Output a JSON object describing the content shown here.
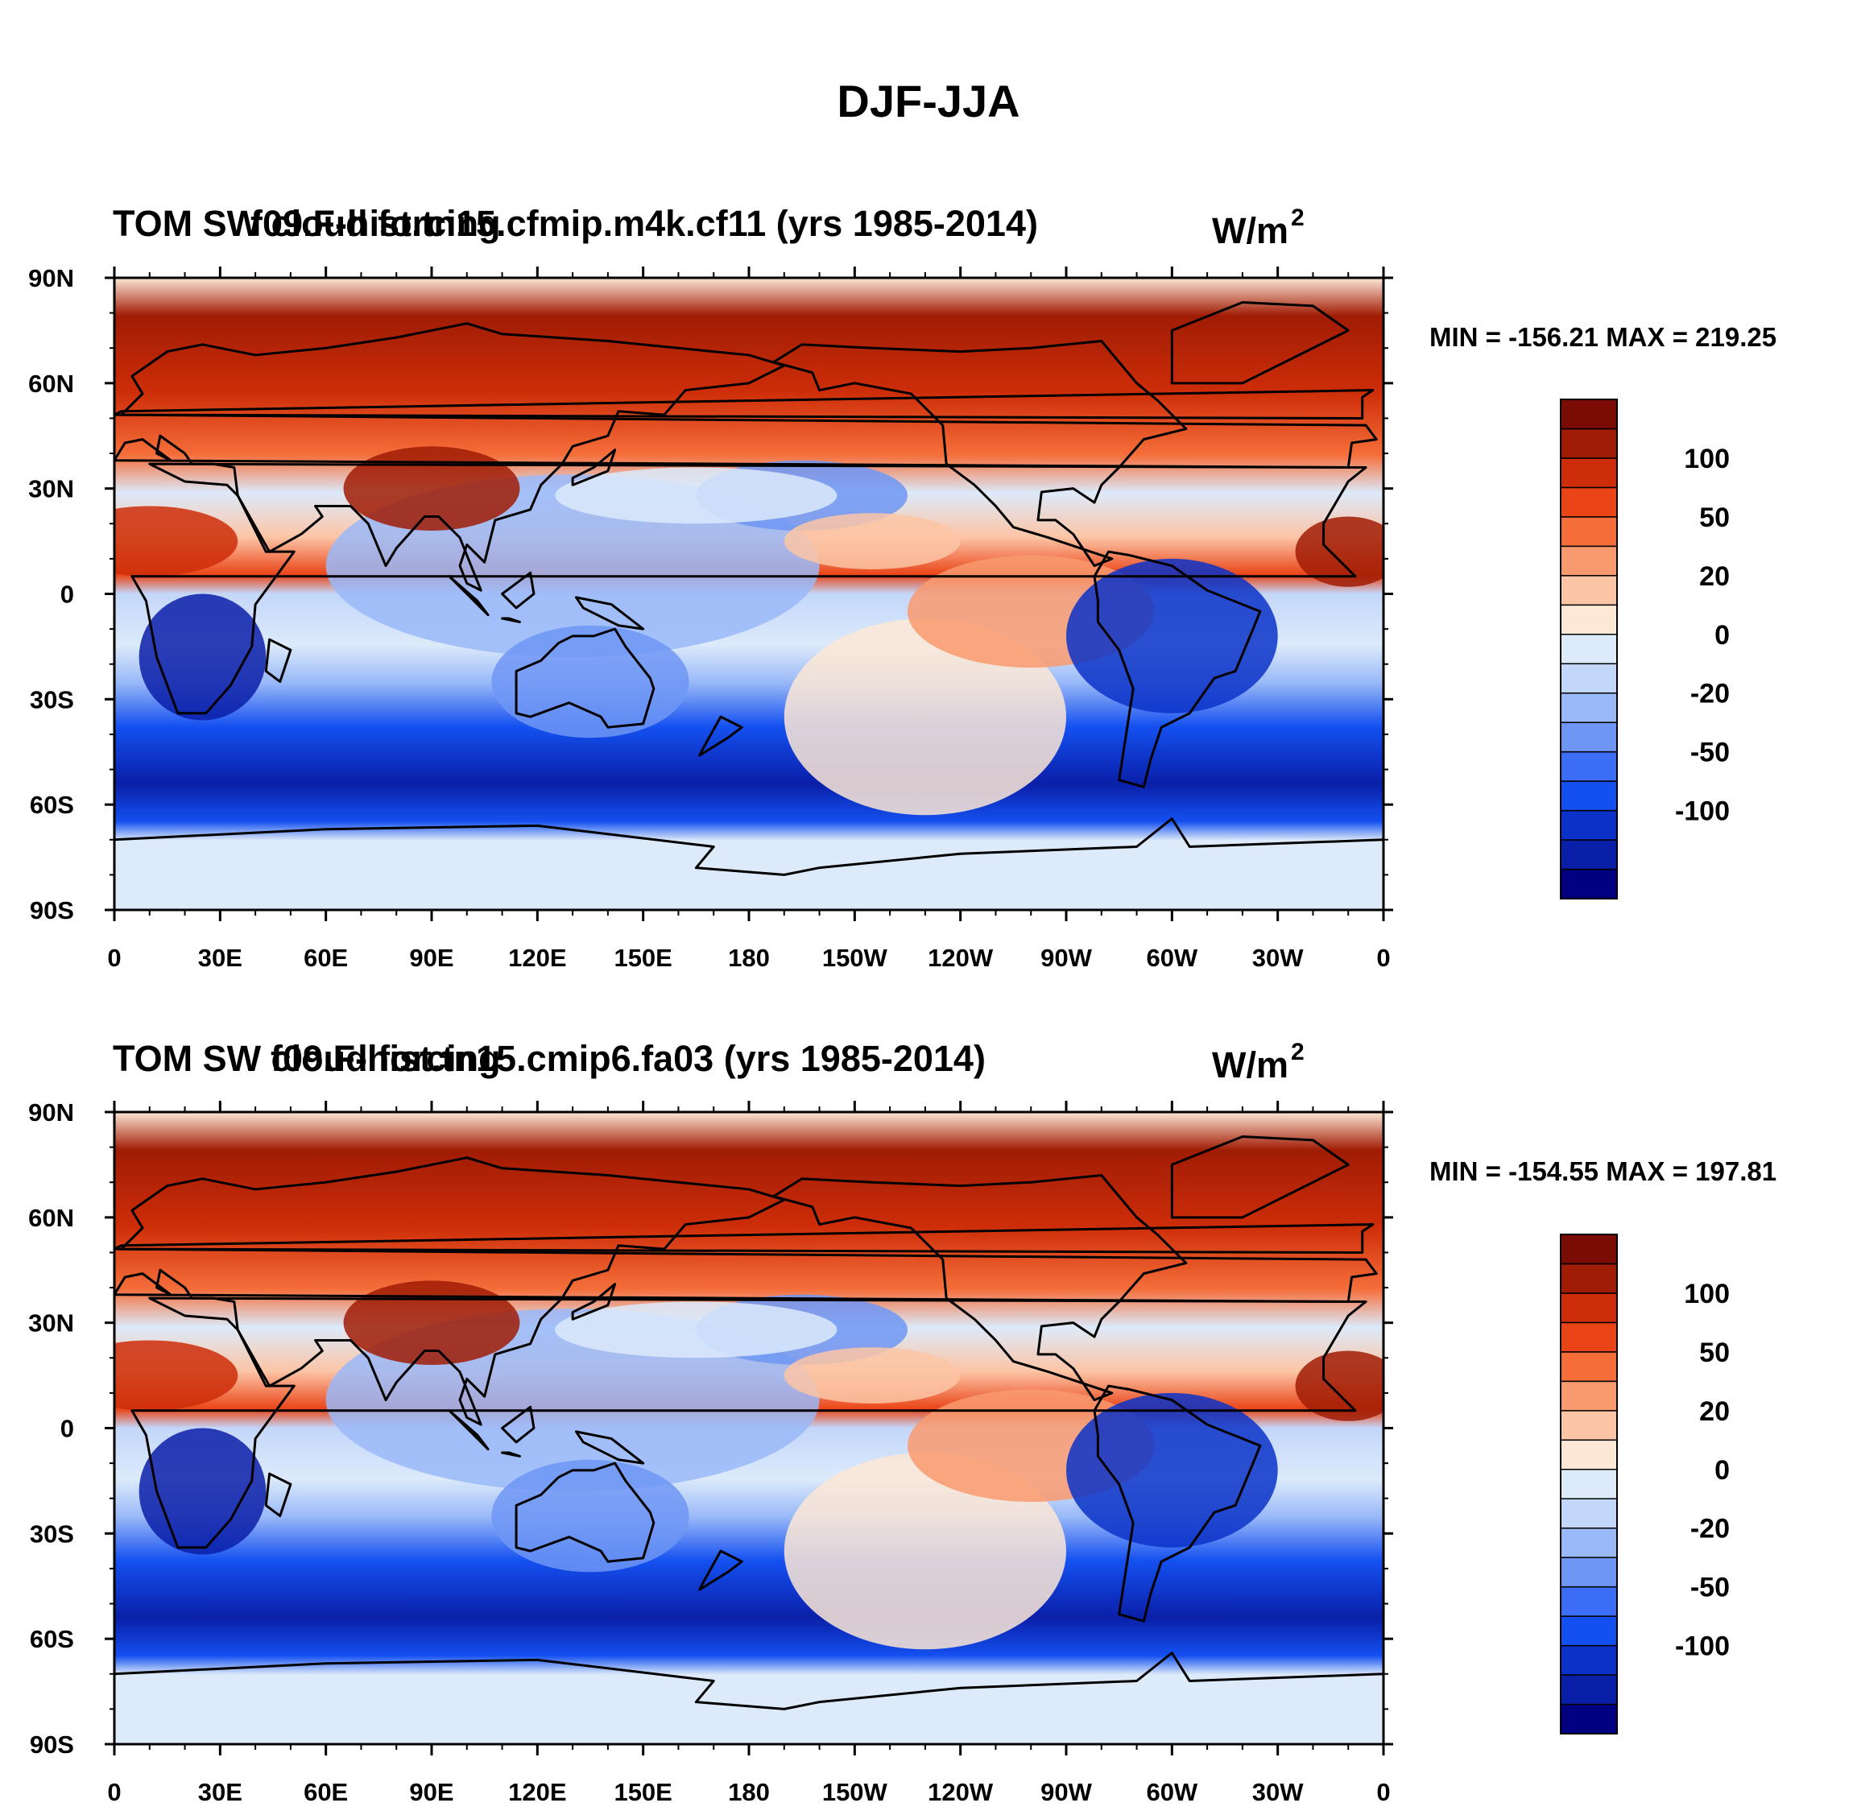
{
  "figure": {
    "title": "DJF-JJA"
  },
  "colorbar": {
    "colors": [
      "#000080",
      "#0a1fa8",
      "#0a32c8",
      "#1450f0",
      "#3c6ef5",
      "#6e96f5",
      "#9ab9f8",
      "#c3d7fa",
      "#dceafa",
      "#fde7d6",
      "#fcc5a6",
      "#f99a6e",
      "#f56e3a",
      "#ea4417",
      "#cd2d08",
      "#a01c05",
      "#7a0b05"
    ],
    "labels": [
      {
        "text": "100",
        "boundary": 2
      },
      {
        "text": "50",
        "boundary": 4
      },
      {
        "text": "20",
        "boundary": 6
      },
      {
        "text": "0",
        "boundary": 8
      },
      {
        "text": "-20",
        "boundary": 10
      },
      {
        "text": "-50",
        "boundary": 12
      },
      {
        "text": "-100",
        "boundary": 14
      }
    ]
  },
  "axes": {
    "lat_labels": [
      "90N",
      "60N",
      "30N",
      "0",
      "30S",
      "60S",
      "90S"
    ],
    "lon_labels": [
      "0",
      "30E",
      "60E",
      "90E",
      "120E",
      "150E",
      "180",
      "150W",
      "120W",
      "90W",
      "60W",
      "30W",
      "0"
    ]
  },
  "panels": [
    {
      "left_title": "TOM SW cloud forcing",
      "center_title": "f09.F-hist.tn15.cfmip.m4k.cf11 (yrs 1985-2014)",
      "units_base": "W/m",
      "units_exp": "2",
      "minmax": "MIN = -156.21 MAX = 219.25"
    },
    {
      "left_title": "TOM SW cloud forcing",
      "center_title": "f09.F-hist.tn15.cmip6.fa03 (yrs 1985-2014)",
      "units_base": "W/m",
      "units_exp": "2",
      "minmax": "MIN = -154.55 MAX = 197.81"
    }
  ]
}
